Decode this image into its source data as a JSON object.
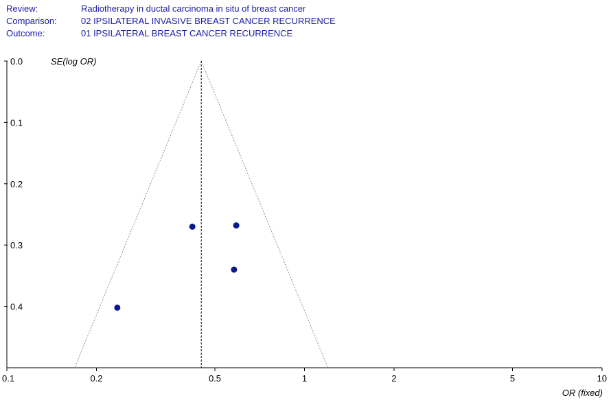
{
  "header": {
    "review_label": "Review:",
    "review_value": "Radiotherapy in ductal carcinoma in situ of breast cancer",
    "comparison_label": "Comparison:",
    "comparison_value": "02 IPSILATERAL INVASIVE BREAST CANCER RECURRENCE",
    "outcome_label": "Outcome:",
    "outcome_value": "01 IPSILATERAL BREAST CANCER RECURRENCE"
  },
  "chart_data": {
    "type": "scatter",
    "subtype": "funnel-plot",
    "xlabel": "OR (fixed)",
    "ylabel": "SE(log OR)",
    "x_scale": "log",
    "xlim": [
      0.1,
      10
    ],
    "ylim": [
      0.0,
      0.5
    ],
    "y_reversed": true,
    "x_ticks": [
      {
        "value": 0.1,
        "label": "0.1"
      },
      {
        "value": 0.2,
        "label": "0.2"
      },
      {
        "value": 0.5,
        "label": "0.5"
      },
      {
        "value": 1,
        "label": "1"
      },
      {
        "value": 2,
        "label": "2"
      },
      {
        "value": 5,
        "label": "5"
      },
      {
        "value": 10,
        "label": "10"
      }
    ],
    "y_ticks": [
      {
        "value": 0.0,
        "label": "0.0"
      },
      {
        "value": 0.1,
        "label": "0.1"
      },
      {
        "value": 0.2,
        "label": "0.2"
      },
      {
        "value": 0.3,
        "label": "0.3"
      },
      {
        "value": 0.4,
        "label": "0.4"
      }
    ],
    "pooled_or": 0.45,
    "points": [
      {
        "x": 0.42,
        "y": 0.27
      },
      {
        "x": 0.59,
        "y": 0.268
      },
      {
        "x": 0.58,
        "y": 0.34
      },
      {
        "x": 0.235,
        "y": 0.402
      }
    ],
    "grid": false,
    "point_color": "#0a1a8c",
    "funnel_color": "#8c8c8c",
    "pooled_line_color": "#000000"
  }
}
